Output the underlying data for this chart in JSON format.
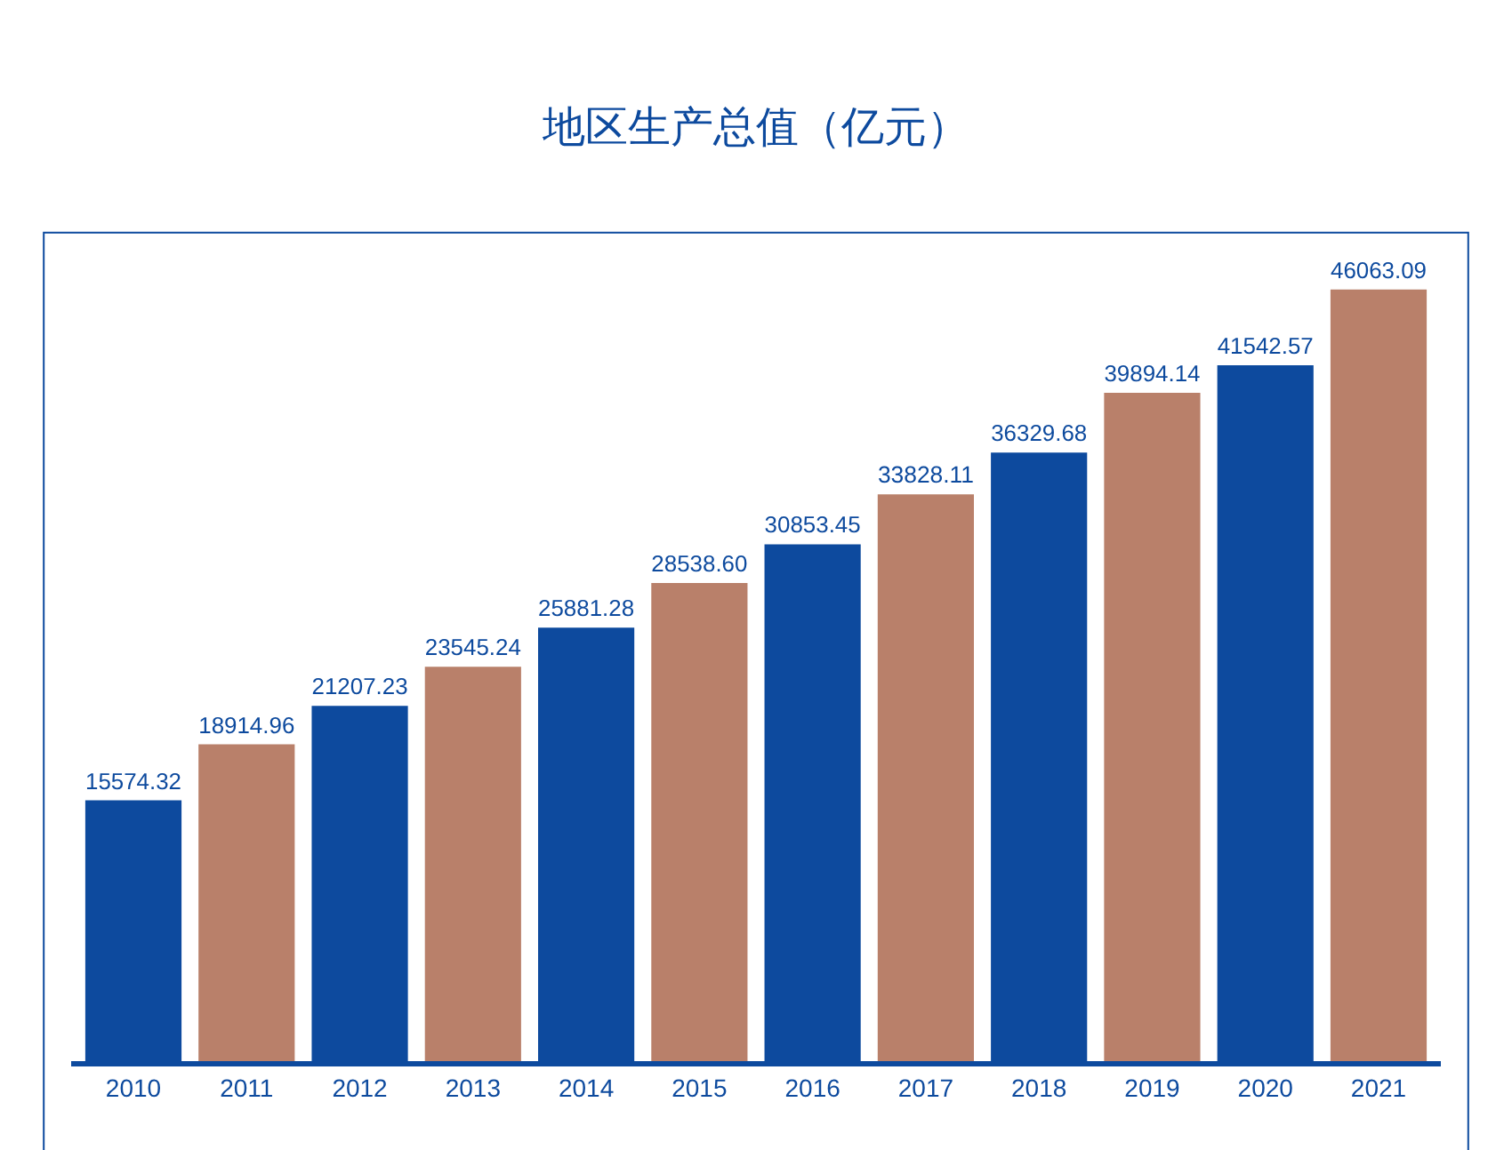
{
  "chart_data": {
    "type": "bar",
    "title": "地区生产总值（亿元）",
    "categories": [
      "2010",
      "2011",
      "2012",
      "2013",
      "2014",
      "2015",
      "2016",
      "2017",
      "2018",
      "2019",
      "2020",
      "2021"
    ],
    "values": [
      15574.32,
      18914.96,
      21207.23,
      23545.24,
      25881.28,
      28538.6,
      30853.45,
      33828.11,
      36329.68,
      39894.14,
      41542.57,
      46063.09
    ],
    "colors": [
      "#0d4a9e",
      "#b9806a",
      "#0d4a9e",
      "#b9806a",
      "#0d4a9e",
      "#b9806a",
      "#0d4a9e",
      "#b9806a",
      "#0d4a9e",
      "#b9806a",
      "#0d4a9e",
      "#b9806a"
    ],
    "value_labels": [
      "15574.32",
      "18914.96",
      "21207.23",
      "23545.24",
      "25881.28",
      "28538.60",
      "30853.45",
      "33828.11",
      "36329.68",
      "39894.14",
      "41542.57",
      "46063.09"
    ]
  }
}
